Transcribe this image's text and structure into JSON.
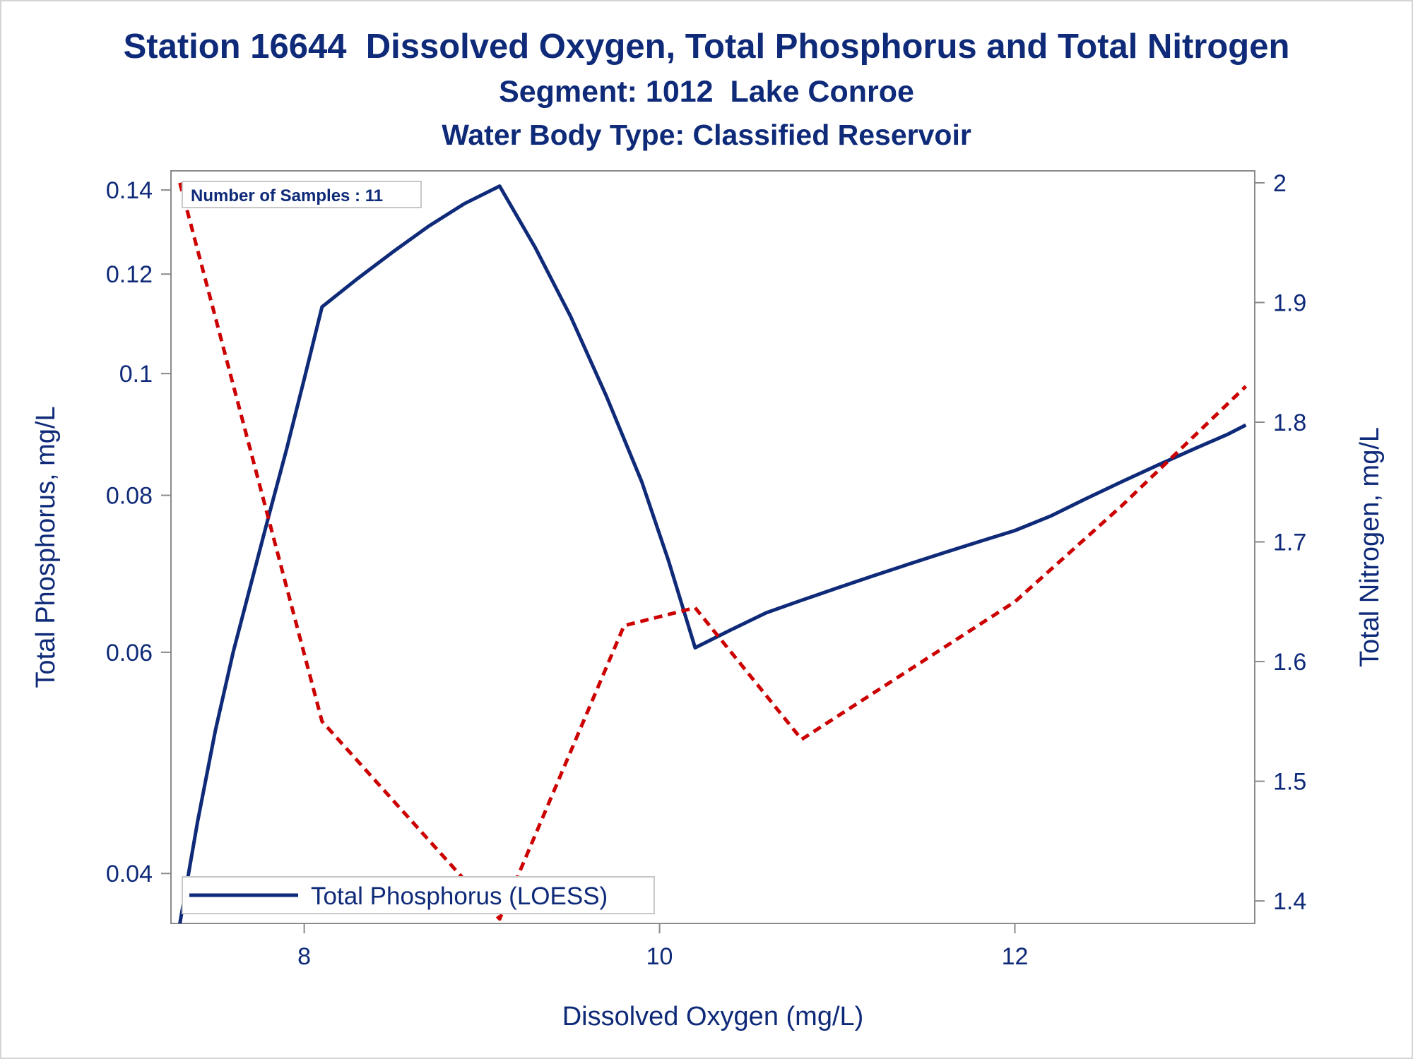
{
  "titles": {
    "title": "Station 16644  Dissolved Oxygen, Total Phosphorus and Total Nitrogen",
    "subtitle": "Segment: 1012  Lake Conroe",
    "subtitle2": "Water Body Type: Classified Reservoir"
  },
  "colors": {
    "text": "#0e2a78",
    "phosphorus_line": "#0e2a78",
    "nitrogen_line": "#cc0000",
    "axis": "#8a8a8a"
  },
  "chart_data": {
    "type": "line",
    "title": "Station 16644  Dissolved Oxygen, Total Phosphorus and Total Nitrogen",
    "xlabel": "Dissolved Oxygen (mg/L)",
    "ylabel": "Total Phosphorus, mg/L",
    "y2label": "Total Nitrogen, mg/L",
    "xlim": [
      7.25,
      13.35
    ],
    "ylim": [
      0.0365,
      0.145
    ],
    "y_scale": "log",
    "y2lim": [
      1.3812,
      2.01
    ],
    "xticks": [
      "8",
      "10",
      "12"
    ],
    "yticks": [
      "0.04",
      "0.06",
      "0.08",
      "0.1",
      "0.12",
      "0.14"
    ],
    "y2ticks": [
      "1.4",
      "1.5",
      "1.6",
      "1.7",
      "1.8",
      "1.9",
      "2"
    ],
    "grid": false,
    "inset_label": "Number of Samples : 11",
    "legend": {
      "position": "bottom-left",
      "entries": [
        "Total Phosphorus (LOESS)"
      ]
    },
    "series": [
      {
        "name": "Total Phosphorus (LOESS)",
        "axis": "left",
        "style": "solid",
        "x": [
          7.3,
          7.4,
          7.5,
          7.6,
          7.7,
          7.8,
          7.9,
          8.0,
          8.1,
          8.3,
          8.5,
          8.7,
          8.9,
          9.1,
          9.3,
          9.5,
          9.7,
          9.9,
          10.05,
          10.2,
          10.4,
          10.6,
          10.8,
          11.0,
          11.2,
          11.4,
          11.6,
          11.8,
          12.0,
          12.2,
          12.4,
          12.6,
          12.8,
          13.0,
          13.2,
          13.3
        ],
        "y": [
          0.0365,
          0.044,
          0.052,
          0.06,
          0.068,
          0.077,
          0.087,
          0.099,
          0.113,
          0.119,
          0.125,
          0.131,
          0.1365,
          0.141,
          0.126,
          0.111,
          0.096,
          0.082,
          0.071,
          0.0605,
          0.0625,
          0.0645,
          0.066,
          0.0675,
          0.069,
          0.0705,
          0.072,
          0.0735,
          0.075,
          0.077,
          0.0795,
          0.082,
          0.0845,
          0.087,
          0.0895,
          0.091
        ]
      },
      {
        "name": "",
        "axis": "right",
        "style": "dashed",
        "x": [
          7.3,
          8.1,
          9.1,
          9.8,
          10.2,
          10.8,
          12.0,
          12.6,
          13.3
        ],
        "y": [
          2.0,
          1.55,
          1.385,
          1.63,
          1.645,
          1.535,
          1.65,
          1.73,
          1.83
        ]
      }
    ]
  }
}
